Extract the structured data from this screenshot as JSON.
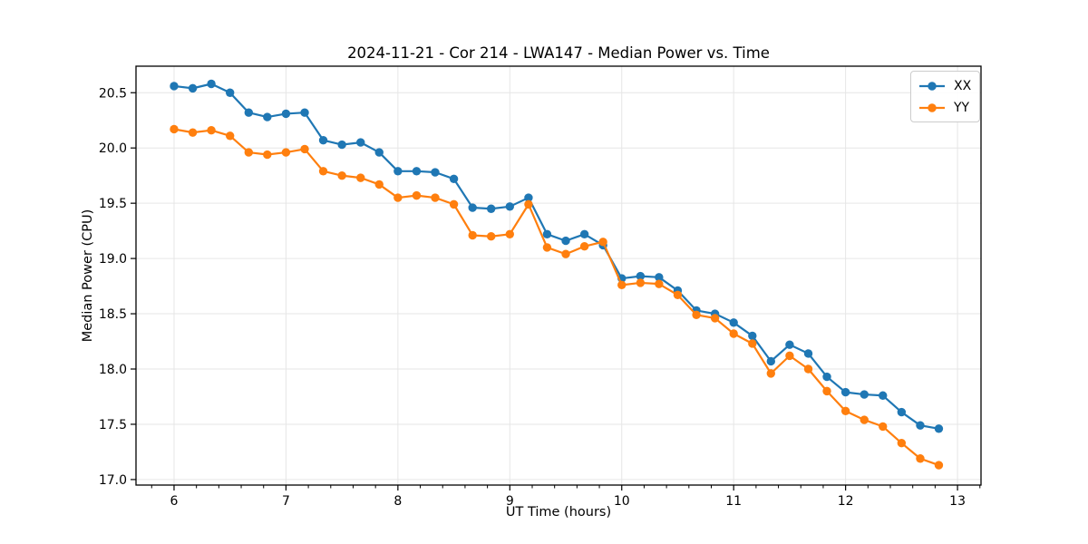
{
  "figure": {
    "title": "2024-11-21 - Cor 214 - LWA147 - Median Power vs. Time",
    "xlabel": "UT Time (hours)",
    "ylabel": "Median Power (CPU)"
  },
  "colors": {
    "series_xx": "#1f77b4",
    "series_yy": "#ff7f0e",
    "grid": "#e6e6e6",
    "frame": "#000000",
    "legend_border": "#cccccc"
  },
  "chart_data": {
    "type": "line",
    "title": "2024-11-21 - Cor 214 - LWA147 - Median Power vs. Time",
    "xlabel": "UT Time (hours)",
    "ylabel": "Median Power (CPU)",
    "xlim": [
      5.66,
      13.21
    ],
    "ylim": [
      16.95,
      20.74
    ],
    "xticks": [
      6,
      7,
      8,
      9,
      10,
      11,
      12,
      13
    ],
    "yticks": [
      17.0,
      17.5,
      18.0,
      18.5,
      19.0,
      19.5,
      20.0,
      20.5
    ],
    "x_minor_tick_step": 0.2,
    "grid": true,
    "legend_position": "upper right",
    "marker": "circle",
    "x": [
      6.0,
      6.167,
      6.333,
      6.5,
      6.667,
      6.833,
      7.0,
      7.167,
      7.333,
      7.5,
      7.667,
      7.833,
      8.0,
      8.167,
      8.333,
      8.5,
      8.667,
      8.833,
      9.0,
      9.167,
      9.333,
      9.5,
      9.667,
      9.833,
      10.0,
      10.167,
      10.333,
      10.5,
      10.667,
      10.833,
      11.0,
      11.167,
      11.333,
      11.5,
      11.667,
      11.833,
      12.0,
      12.167,
      12.333,
      12.5,
      12.667,
      12.833
    ],
    "series": [
      {
        "name": "XX",
        "color": "#1f77b4",
        "values": [
          20.56,
          20.54,
          20.58,
          20.5,
          20.32,
          20.28,
          20.31,
          20.32,
          20.07,
          20.03,
          20.05,
          19.96,
          19.79,
          19.79,
          19.78,
          19.72,
          19.46,
          19.45,
          19.47,
          19.55,
          19.22,
          19.16,
          19.22,
          19.12,
          18.82,
          18.84,
          18.83,
          18.71,
          18.53,
          18.5,
          18.42,
          18.3,
          18.07,
          18.22,
          18.14,
          17.93,
          17.79,
          17.77,
          17.76,
          17.61,
          17.49,
          17.46
        ]
      },
      {
        "name": "YY",
        "color": "#ff7f0e",
        "values": [
          20.17,
          20.14,
          20.16,
          20.11,
          19.96,
          19.94,
          19.96,
          19.99,
          19.79,
          19.75,
          19.73,
          19.67,
          19.55,
          19.57,
          19.55,
          19.49,
          19.21,
          19.2,
          19.22,
          19.49,
          19.1,
          19.04,
          19.11,
          19.15,
          18.76,
          18.78,
          18.77,
          18.67,
          18.49,
          18.46,
          18.32,
          18.23,
          17.96,
          18.12,
          18.0,
          17.8,
          17.62,
          17.54,
          17.48,
          17.33,
          17.19,
          17.13
        ]
      }
    ]
  }
}
